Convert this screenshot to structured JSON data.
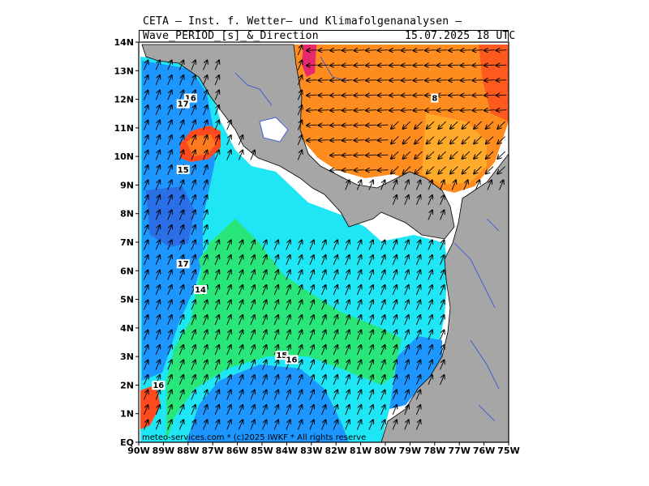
{
  "header": {
    "title": "CETA – Inst. f. Wetter– und Klimafolgenanalysen –",
    "subtitle": "Wave_PERIOD_[s]_&_Direction",
    "valid_time": "15.07.2025 18 UTC"
  },
  "copyright": "meteo-services.com * (c)2025 IWKF * All rights reserve",
  "axes": {
    "lat_labels": [
      "14N",
      "13N",
      "12N",
      "11N",
      "10N",
      "9N",
      "8N",
      "7N",
      "6N",
      "5N",
      "4N",
      "3N",
      "2N",
      "1N",
      "EQ"
    ],
    "lon_labels": [
      "90W",
      "89W",
      "88W",
      "87W",
      "86W",
      "85W",
      "84W",
      "83W",
      "82W",
      "81W",
      "80W",
      "79W",
      "78W",
      "77W",
      "76W",
      "75W"
    ]
  },
  "contour_labels": [
    {
      "text": "16",
      "lon": -87.9,
      "lat": 12.0
    },
    {
      "text": "17",
      "lon": -88.2,
      "lat": 11.8
    },
    {
      "text": "8",
      "lon": -78.0,
      "lat": 12.0
    },
    {
      "text": "15",
      "lon": -88.2,
      "lat": 9.5
    },
    {
      "text": "17",
      "lon": -88.2,
      "lat": 6.2
    },
    {
      "text": "14",
      "lon": -87.5,
      "lat": 5.3
    },
    {
      "text": "15",
      "lon": -84.2,
      "lat": 3.0
    },
    {
      "text": "16",
      "lon": -83.8,
      "lat": 2.85
    },
    {
      "text": "16",
      "lon": -89.2,
      "lat": 1.95
    }
  ],
  "legend_colors": {
    "land": "#a6a6a6",
    "cyan": "#1ee6f5",
    "blue": "#1e96ff",
    "deep_blue": "#2a6fe6",
    "green": "#28e67a",
    "orange": "#ff8c1e",
    "light_orange": "#ffaa2a",
    "red": "#ff4a1e",
    "magenta": "#e8286e"
  },
  "arrow_direction": {
    "pacific": "north-northeast",
    "caribbean": "west-southwest"
  }
}
